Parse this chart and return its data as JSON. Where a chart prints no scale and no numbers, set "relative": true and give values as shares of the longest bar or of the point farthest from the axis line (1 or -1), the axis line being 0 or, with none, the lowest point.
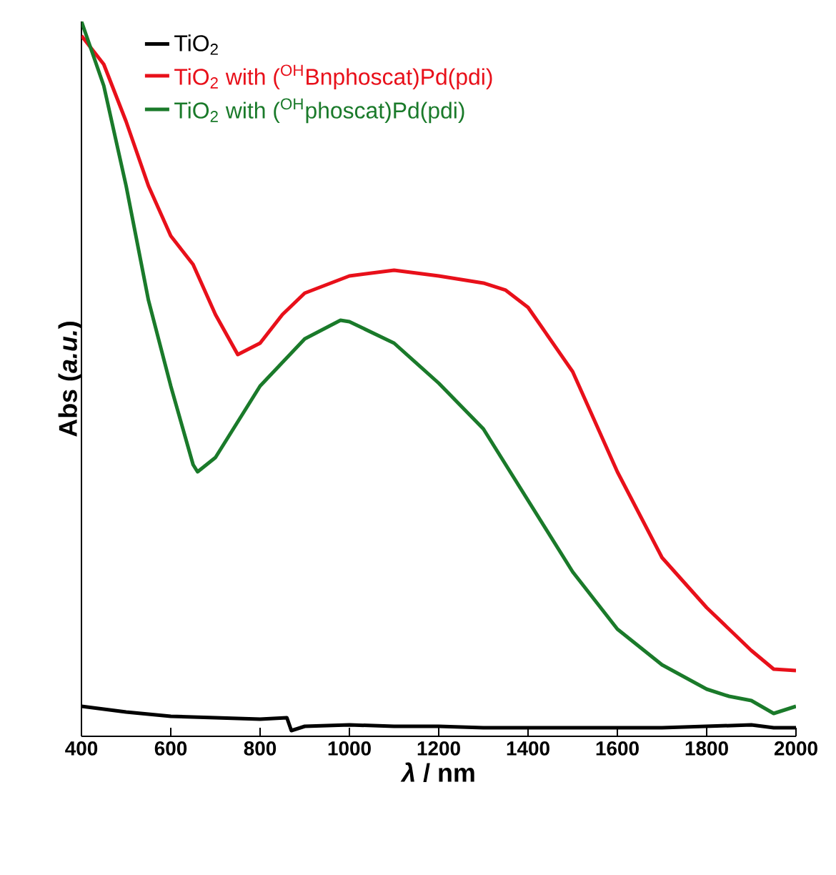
{
  "chart_data": {
    "type": "line",
    "relative": true,
    "xlabel": "*λ* / nm",
    "ylabel": "Abs (*a.u.*)",
    "xlim": [
      400,
      2000
    ],
    "xticks": [
      400,
      600,
      800,
      1000,
      1200,
      1400,
      1600,
      1800,
      2000
    ],
    "legend": "top left",
    "grid": false,
    "marker": "none",
    "line_style": "solid",
    "series": [
      {
        "name": "TiO$_{2}$",
        "color": "#000000",
        "x": [
          400,
          500,
          600,
          700,
          800,
          860,
          870,
          900,
          1000,
          1100,
          1200,
          1300,
          1400,
          1500,
          1600,
          1700,
          1800,
          1900,
          1950,
          2000
        ],
        "values": [
          0.042,
          0.034,
          0.028,
          0.026,
          0.024,
          0.026,
          0.008,
          0.014,
          0.016,
          0.014,
          0.014,
          0.012,
          0.012,
          0.012,
          0.012,
          0.012,
          0.014,
          0.016,
          0.012,
          0.012
        ]
      },
      {
        "name": "TiO$_{2}$ with ($^{OH}$Bnphoscat)Pd(pdi)",
        "color": "#e8101a",
        "x": [
          400,
          450,
          500,
          550,
          600,
          650,
          700,
          750,
          800,
          850,
          900,
          1000,
          1100,
          1200,
          1300,
          1350,
          1400,
          1500,
          1600,
          1700,
          1800,
          1850,
          1900,
          1950,
          2000
        ],
        "values": [
          0.98,
          0.94,
          0.86,
          0.77,
          0.7,
          0.66,
          0.59,
          0.534,
          0.55,
          0.59,
          0.62,
          0.644,
          0.652,
          0.644,
          0.634,
          0.624,
          0.6,
          0.51,
          0.37,
          0.25,
          0.18,
          0.15,
          0.12,
          0.094,
          0.092
        ]
      },
      {
        "name": "TiO$_{2}$ with ($^{OH}$phoscat)Pd(pdi)",
        "color": "#1a7a2a",
        "x": [
          400,
          450,
          500,
          550,
          600,
          650,
          660,
          700,
          750,
          800,
          900,
          980,
          1000,
          1100,
          1200,
          1300,
          1400,
          1500,
          1600,
          1700,
          1800,
          1850,
          1900,
          1950,
          2000
        ],
        "values": [
          1.0,
          0.91,
          0.77,
          0.61,
          0.49,
          0.38,
          0.37,
          0.39,
          0.44,
          0.49,
          0.556,
          0.582,
          0.58,
          0.55,
          0.494,
          0.43,
          0.33,
          0.23,
          0.15,
          0.1,
          0.066,
          0.056,
          0.05,
          0.032,
          0.042
        ]
      }
    ]
  }
}
